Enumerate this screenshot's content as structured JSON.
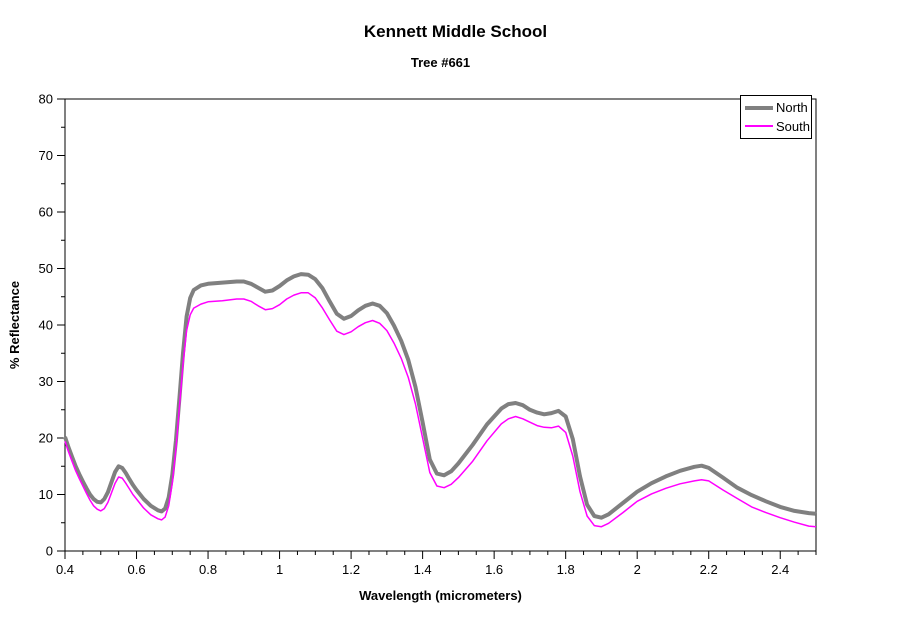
{
  "header": {
    "title": "Kennett Middle School",
    "subtitle": "Tree #661"
  },
  "chart_data": {
    "type": "line",
    "title": "Kennett Middle School",
    "subtitle": "Tree #661",
    "xlabel": "Wavelength (micrometers)",
    "ylabel": "% Reflectance",
    "xlim": [
      0.4,
      2.5
    ],
    "ylim": [
      0,
      80
    ],
    "grid": false,
    "legend_position": "top-right",
    "x_ticks": {
      "major": [
        0.4,
        0.6,
        0.8,
        1.0,
        1.2,
        1.4,
        1.6,
        1.8,
        2.0,
        2.2,
        2.4
      ],
      "labels": [
        "0.4",
        "0.6",
        "0.8",
        "1",
        "1.2",
        "1.4",
        "1.6",
        "1.8",
        "2",
        "2.2",
        "2.4"
      ],
      "minor_step": 0.05
    },
    "y_ticks": {
      "major": [
        0,
        10,
        20,
        30,
        40,
        50,
        60,
        70,
        80
      ],
      "labels": [
        "0",
        "10",
        "20",
        "30",
        "40",
        "50",
        "60",
        "70",
        "80"
      ],
      "minor_step": 5
    },
    "x": [
      0.4,
      0.41,
      0.42,
      0.43,
      0.44,
      0.45,
      0.46,
      0.47,
      0.48,
      0.49,
      0.5,
      0.51,
      0.52,
      0.53,
      0.54,
      0.55,
      0.56,
      0.57,
      0.58,
      0.59,
      0.6,
      0.62,
      0.64,
      0.66,
      0.67,
      0.68,
      0.69,
      0.7,
      0.71,
      0.72,
      0.73,
      0.74,
      0.75,
      0.76,
      0.78,
      0.8,
      0.84,
      0.88,
      0.9,
      0.92,
      0.94,
      0.96,
      0.98,
      1.0,
      1.02,
      1.04,
      1.06,
      1.08,
      1.1,
      1.12,
      1.14,
      1.16,
      1.18,
      1.2,
      1.22,
      1.24,
      1.26,
      1.28,
      1.3,
      1.32,
      1.34,
      1.36,
      1.38,
      1.4,
      1.42,
      1.44,
      1.46,
      1.48,
      1.5,
      1.54,
      1.58,
      1.62,
      1.64,
      1.66,
      1.68,
      1.7,
      1.72,
      1.74,
      1.76,
      1.78,
      1.8,
      1.82,
      1.84,
      1.86,
      1.88,
      1.9,
      1.92,
      1.96,
      2.0,
      2.04,
      2.08,
      2.12,
      2.16,
      2.18,
      2.2,
      2.24,
      2.28,
      2.32,
      2.36,
      2.4,
      2.44,
      2.48,
      2.5
    ],
    "series": [
      {
        "name": "North",
        "color": "#808080",
        "stroke_width": 4,
        "values": [
          20.2,
          18.3,
          16.6,
          15.0,
          13.6,
          12.3,
          11.1,
          10.0,
          9.2,
          8.7,
          8.6,
          9.2,
          10.4,
          12.2,
          14.0,
          15.0,
          14.7,
          13.8,
          12.7,
          11.7,
          10.8,
          9.2,
          8.0,
          7.2,
          7.0,
          7.5,
          9.5,
          13.5,
          19.5,
          27.0,
          35.0,
          41.5,
          44.8,
          46.2,
          47.0,
          47.3,
          47.5,
          47.7,
          47.7,
          47.3,
          46.6,
          45.9,
          46.1,
          46.9,
          47.9,
          48.6,
          49.0,
          48.9,
          48.1,
          46.5,
          44.2,
          42.0,
          41.1,
          41.6,
          42.6,
          43.4,
          43.8,
          43.4,
          42.1,
          39.9,
          37.2,
          33.8,
          29.0,
          22.8,
          16.2,
          13.7,
          13.4,
          14.1,
          15.5,
          18.8,
          22.4,
          25.2,
          26.0,
          26.2,
          25.8,
          25.0,
          24.5,
          24.2,
          24.4,
          24.8,
          23.8,
          19.8,
          13.2,
          8.2,
          6.2,
          5.9,
          6.5,
          8.5,
          10.5,
          12.0,
          13.2,
          14.2,
          14.9,
          15.1,
          14.7,
          13.0,
          11.2,
          9.9,
          8.8,
          7.8,
          7.1,
          6.7,
          6.6
        ]
      },
      {
        "name": "South",
        "color": "#ff00ff",
        "stroke_width": 1.5,
        "values": [
          19.4,
          17.5,
          15.8,
          14.2,
          12.8,
          11.5,
          10.2,
          9.0,
          8.0,
          7.4,
          7.1,
          7.5,
          8.6,
          10.3,
          12.0,
          13.1,
          12.9,
          12.0,
          11.0,
          10.0,
          9.2,
          7.6,
          6.4,
          5.7,
          5.5,
          6.0,
          8.0,
          12.0,
          18.0,
          25.5,
          33.0,
          39.0,
          41.8,
          43.0,
          43.7,
          44.1,
          44.3,
          44.6,
          44.6,
          44.2,
          43.4,
          42.7,
          42.9,
          43.6,
          44.6,
          45.3,
          45.7,
          45.7,
          44.8,
          43.0,
          40.9,
          38.9,
          38.3,
          38.8,
          39.7,
          40.4,
          40.8,
          40.3,
          39.0,
          36.8,
          34.1,
          30.7,
          26.0,
          20.0,
          13.9,
          11.5,
          11.2,
          11.8,
          13.0,
          15.9,
          19.5,
          22.5,
          23.4,
          23.8,
          23.4,
          22.8,
          22.2,
          21.9,
          21.8,
          22.1,
          21.0,
          16.8,
          10.5,
          6.2,
          4.5,
          4.3,
          4.9,
          6.8,
          8.8,
          10.1,
          11.1,
          11.9,
          12.4,
          12.6,
          12.4,
          10.8,
          9.3,
          7.8,
          6.8,
          5.9,
          5.1,
          4.4,
          4.3
        ]
      }
    ]
  }
}
